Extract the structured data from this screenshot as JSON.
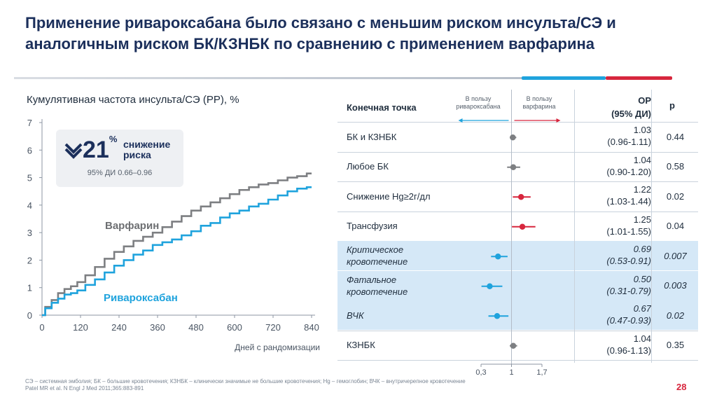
{
  "title": "Применение ривароксабана было связано с меньшим риском инсульта/СЭ и аналогичным риском БК/КЗНБК по сравнению с применением варфарина",
  "colors": {
    "navy": "#1b2f5b",
    "blue": "#1fa3dd",
    "grey": "#7d7f82",
    "red": "#d7263d"
  },
  "callout": {
    "percent": "21",
    "percent_sign": "%",
    "label": "снижение риска",
    "ci": "95% ДИ 0.66–0.96",
    "icon": "double-down-arrow-icon"
  },
  "chart_data": [
    {
      "type": "line",
      "title": "Кумулятивная частота инсульта/СЭ (РР), %",
      "xlabel": "Дней с рандомизации",
      "ylabel": "",
      "xlim": [
        0,
        840
      ],
      "ylim": [
        0,
        7
      ],
      "xticks": [
        "0",
        "120",
        "240",
        "360",
        "480",
        "600",
        "720",
        "840"
      ],
      "yticks": [
        "0",
        "1",
        "2",
        "3",
        "4",
        "5",
        "6",
        "7"
      ],
      "series": [
        {
          "name": "Варфарин",
          "color": "#7d7f82",
          "x": [
            0,
            20,
            40,
            60,
            80,
            100,
            120,
            150,
            180,
            210,
            240,
            270,
            300,
            330,
            360,
            390,
            420,
            450,
            480,
            510,
            540,
            570,
            600,
            630,
            660,
            690,
            720,
            750,
            780,
            810,
            840
          ],
          "y": [
            0,
            0.3,
            0.55,
            0.8,
            0.95,
            1.05,
            1.2,
            1.45,
            1.75,
            2.05,
            2.3,
            2.5,
            2.7,
            2.85,
            3.0,
            3.2,
            3.4,
            3.6,
            3.8,
            3.95,
            4.1,
            4.25,
            4.4,
            4.55,
            4.65,
            4.75,
            4.8,
            4.9,
            5.0,
            5.05,
            5.15
          ]
        },
        {
          "name": "Ривароксабан",
          "color": "#1fa3dd",
          "x": [
            0,
            20,
            40,
            60,
            80,
            100,
            120,
            150,
            180,
            210,
            240,
            270,
            300,
            330,
            360,
            390,
            420,
            450,
            480,
            510,
            540,
            570,
            600,
            630,
            660,
            690,
            720,
            750,
            780,
            810,
            840
          ],
          "y": [
            0,
            0.25,
            0.45,
            0.6,
            0.75,
            0.8,
            0.9,
            1.1,
            1.3,
            1.55,
            1.8,
            2.0,
            2.2,
            2.35,
            2.55,
            2.65,
            2.75,
            2.9,
            3.05,
            3.25,
            3.35,
            3.55,
            3.7,
            3.8,
            3.95,
            4.05,
            4.2,
            4.35,
            4.5,
            4.6,
            4.65
          ]
        }
      ],
      "annotations": [
        {
          "text": "Варфарин",
          "series": 0
        },
        {
          "text": "Ривароксабан",
          "series": 1
        }
      ]
    },
    {
      "type": "forest",
      "favor_left": "В пользу ривароксабана",
      "favor_right": "В пользу варфарина",
      "xticks": [
        "0,3",
        "1",
        "1,7"
      ],
      "xlim": [
        0.3,
        1.7
      ],
      "reference": 1,
      "columns": {
        "endpoint": "Конечная точка",
        "or": [
          "ОР",
          "(95% ДИ)"
        ],
        "p": "p"
      },
      "rows": [
        {
          "label": "БК и КЗНБК",
          "or": "1.03",
          "ci": "(0.96-1.11)",
          "p": "0.44",
          "value": 1.03,
          "lo": 0.96,
          "hi": 1.11,
          "color": "grey",
          "highlight": false
        },
        {
          "label": "Любое БК",
          "or": "1.04",
          "ci": "(0.90-1.20)",
          "p": "0.58",
          "value": 1.04,
          "lo": 0.9,
          "hi": 1.2,
          "color": "grey",
          "highlight": false
        },
        {
          "label": "Снижение Hg≥2г/дл",
          "or": "1.22",
          "ci": "(1.03-1.44)",
          "p": "0.02",
          "value": 1.22,
          "lo": 1.03,
          "hi": 1.44,
          "color": "red",
          "highlight": false
        },
        {
          "label": "Трансфузия",
          "or": "1.25",
          "ci": "(1.01-1.55)",
          "p": "0.04",
          "value": 1.25,
          "lo": 1.01,
          "hi": 1.55,
          "color": "red",
          "highlight": false
        },
        {
          "label": "Критическое кровотечение",
          "or": "0.69",
          "ci": "(0.53-0.91)",
          "p": "0.007",
          "value": 0.69,
          "lo": 0.53,
          "hi": 0.91,
          "color": "blue",
          "highlight": true
        },
        {
          "label": "Фатальное кровотечение",
          "or": "0.50",
          "ci": "(0.31-0.79)",
          "p": "0.003",
          "value": 0.5,
          "lo": 0.31,
          "hi": 0.79,
          "color": "blue",
          "highlight": true
        },
        {
          "label": "ВЧК",
          "or": "0.67",
          "ci": "(0.47-0.93)",
          "p": "0.02",
          "value": 0.67,
          "lo": 0.47,
          "hi": 0.93,
          "color": "blue",
          "highlight": true
        },
        {
          "label": "КЗНБК",
          "or": "1.04",
          "ci": "(0.96-1.13)",
          "p": "0.35",
          "value": 1.04,
          "lo": 0.96,
          "hi": 1.13,
          "color": "grey",
          "highlight": false
        }
      ]
    }
  ],
  "footnote": {
    "line1": "СЭ – системная эмболия; БК – большие кровотечения; КЗНБК – клинически значимые не большие кровотечения; Hg – гемоглобин; ВЧК – внутричерепное кровотечение",
    "line2": "Patel MR et al. N Engl J Med 2011;365:883-891"
  },
  "page_number": "28"
}
